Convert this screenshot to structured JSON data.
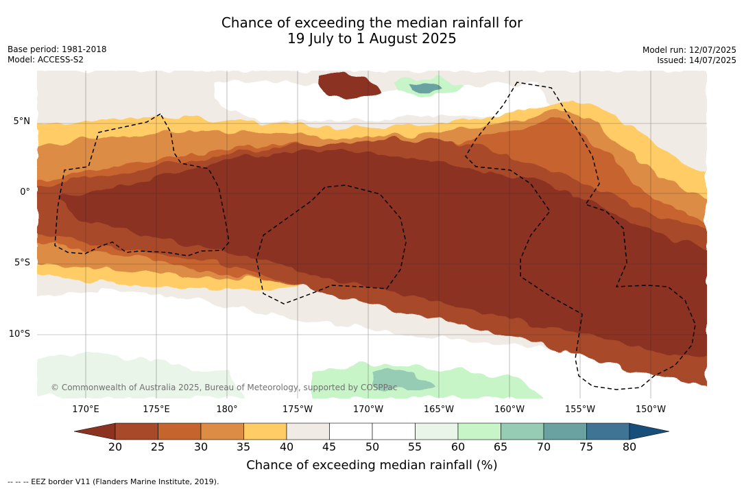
{
  "title": {
    "line1": "Chance of exceeding the median rainfall for",
    "line2": "19 July to 1 August 2025"
  },
  "meta": {
    "base_period": "Base period: 1981-2018",
    "model": "Model: ACCESS-S2",
    "model_run": "Model run: 12/07/2025",
    "issued": "Issued: 14/07/2025"
  },
  "map": {
    "lat_labels": [
      "5°N",
      "0°",
      "5°S",
      "10°S"
    ],
    "lon_labels": [
      "170°E",
      "175°E",
      "180°",
      "175°W",
      "170°W",
      "165°W",
      "160°W",
      "155°W",
      "150°W"
    ],
    "copyright": "© Commonwealth of Australia 2025, Bureau of Meteorology, supported by COSPPac"
  },
  "colorbar": {
    "title": "Chance of exceeding median rainfall (%)",
    "ticks": [
      "20",
      "25",
      "30",
      "35",
      "40",
      "45",
      "50",
      "55",
      "60",
      "65",
      "70",
      "75",
      "80"
    ],
    "under_color": "#8b3320",
    "over_color": "#184e7a",
    "colors": [
      "#a84a2a",
      "#c6642e",
      "#dc8c44",
      "#ffcc66",
      "#f0ebe5",
      "#ffffff",
      "#ffffff",
      "#e8f5e8",
      "#c8f5c8",
      "#96cbb4",
      "#6aa2a2",
      "#3f7494"
    ]
  },
  "footer": {
    "eez": "-- -- -- EEZ border V11 (Flanders Marine Institute, 2019)."
  }
}
